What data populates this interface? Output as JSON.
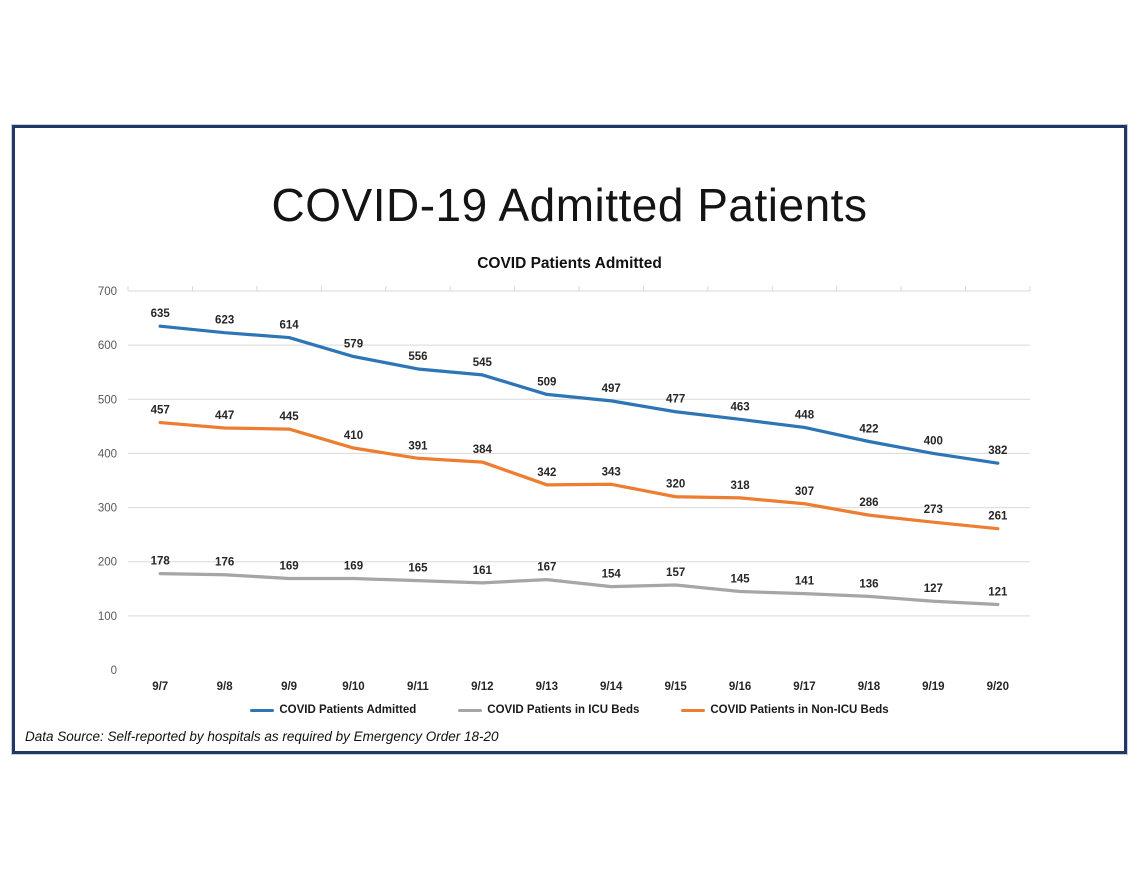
{
  "page": {
    "main_title": "COVID-19 Admitted Patients",
    "footer_note": "Data Source: Self-reported by hospitals as required by Emergency Order 18-20"
  },
  "chart_data": {
    "type": "line",
    "title": "COVID Patients Admitted",
    "categories": [
      "9/7",
      "9/8",
      "9/9",
      "9/10",
      "9/11",
      "9/12",
      "9/13",
      "9/14",
      "9/15",
      "9/16",
      "9/17",
      "9/18",
      "9/19",
      "9/20"
    ],
    "series": [
      {
        "name": "COVID Patients Admitted",
        "color": "#2E75B6",
        "values": [
          635,
          623,
          614,
          579,
          556,
          545,
          509,
          497,
          477,
          463,
          448,
          422,
          400,
          382
        ]
      },
      {
        "name": "COVID Patients in ICU Beds",
        "color": "#A6A6A6",
        "values": [
          178,
          176,
          169,
          169,
          165,
          161,
          167,
          154,
          157,
          145,
          141,
          136,
          127,
          121
        ]
      },
      {
        "name": "COVID Patients in Non-ICU Beds",
        "color": "#ED7D31",
        "values": [
          457,
          447,
          445,
          410,
          391,
          384,
          342,
          343,
          320,
          318,
          307,
          286,
          273,
          261
        ]
      }
    ],
    "xlabel": "",
    "ylabel": "",
    "ylim": [
      0,
      700
    ],
    "ytick_interval": 100,
    "grid": "horizontal",
    "gridline_color": "#D9D9D9",
    "axis_label_color": "#595959",
    "data_label_color": "#262626",
    "data_labels": true,
    "legend_position": "bottom",
    "frame_border_color": "#1F3864"
  }
}
